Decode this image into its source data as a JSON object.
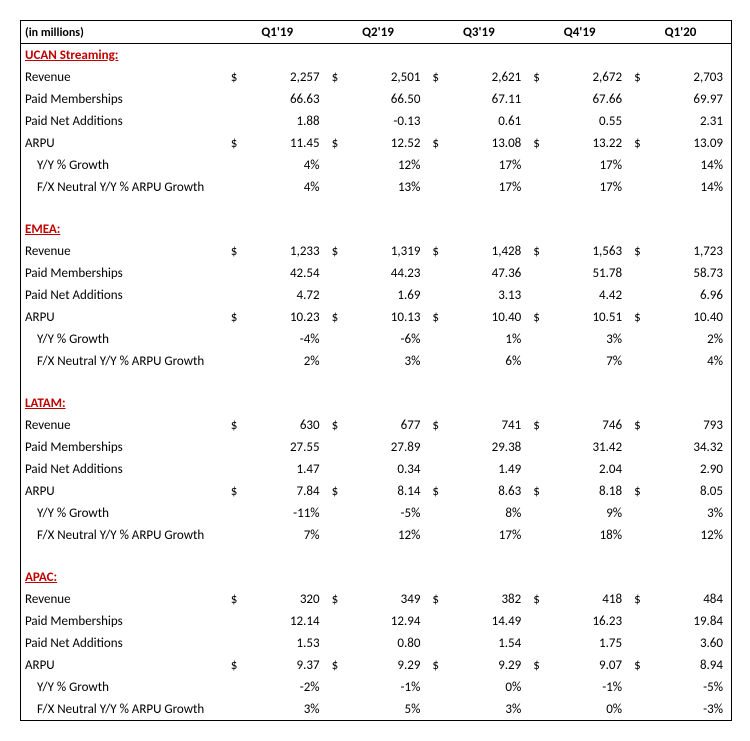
{
  "subtitle": "(in millions)",
  "columns": [
    "Q1'19",
    "Q2'19",
    "Q3'19",
    "Q4'19",
    "Q1'20"
  ],
  "sections": [
    {
      "title": "UCAN Streaming:",
      "rows": [
        {
          "label": "Revenue",
          "indent": 0,
          "dollar": true,
          "values": [
            "2,257",
            "2,501",
            "2,621",
            "2,672",
            "2,703"
          ]
        },
        {
          "label": "Paid Memberships",
          "indent": 0,
          "dollar": false,
          "values": [
            "66.63",
            "66.50",
            "67.11",
            "67.66",
            "69.97"
          ]
        },
        {
          "label": "Paid Net Additions",
          "indent": 0,
          "dollar": false,
          "values": [
            "1.88",
            "-0.13",
            "0.61",
            "0.55",
            "2.31"
          ]
        },
        {
          "label": "ARPU",
          "indent": 0,
          "dollar": true,
          "values": [
            "11.45",
            "12.52",
            "13.08",
            "13.22",
            "13.09"
          ]
        },
        {
          "label": "Y/Y % Growth",
          "indent": 1,
          "dollar": false,
          "values": [
            "4%",
            "12%",
            "17%",
            "17%",
            "14%"
          ]
        },
        {
          "label": "F/X Neutral Y/Y % ARPU Growth",
          "indent": 1,
          "dollar": false,
          "values": [
            "4%",
            "13%",
            "17%",
            "17%",
            "14%"
          ]
        }
      ]
    },
    {
      "title": "EMEA:",
      "rows": [
        {
          "label": "Revenue",
          "indent": 0,
          "dollar": true,
          "values": [
            "1,233",
            "1,319",
            "1,428",
            "1,563",
            "1,723"
          ]
        },
        {
          "label": "Paid Memberships",
          "indent": 0,
          "dollar": false,
          "values": [
            "42.54",
            "44.23",
            "47.36",
            "51.78",
            "58.73"
          ]
        },
        {
          "label": "Paid Net Additions",
          "indent": 0,
          "dollar": false,
          "values": [
            "4.72",
            "1.69",
            "3.13",
            "4.42",
            "6.96"
          ]
        },
        {
          "label": "ARPU",
          "indent": 0,
          "dollar": true,
          "values": [
            "10.23",
            "10.13",
            "10.40",
            "10.51",
            "10.40"
          ]
        },
        {
          "label": "Y/Y % Growth",
          "indent": 1,
          "dollar": false,
          "values": [
            "-4%",
            "-6%",
            "1%",
            "3%",
            "2%"
          ]
        },
        {
          "label": "F/X Neutral Y/Y % ARPU Growth",
          "indent": 1,
          "dollar": false,
          "values": [
            "2%",
            "3%",
            "6%",
            "7%",
            "4%"
          ]
        }
      ]
    },
    {
      "title": "LATAM:",
      "rows": [
        {
          "label": "Revenue",
          "indent": 0,
          "dollar": true,
          "values": [
            "630",
            "677",
            "741",
            "746",
            "793"
          ]
        },
        {
          "label": "Paid Memberships",
          "indent": 0,
          "dollar": false,
          "values": [
            "27.55",
            "27.89",
            "29.38",
            "31.42",
            "34.32"
          ]
        },
        {
          "label": "Paid Net Additions",
          "indent": 0,
          "dollar": false,
          "values": [
            "1.47",
            "0.34",
            "1.49",
            "2.04",
            "2.90"
          ]
        },
        {
          "label": "ARPU",
          "indent": 0,
          "dollar": true,
          "values": [
            "7.84",
            "8.14",
            "8.63",
            "8.18",
            "8.05"
          ]
        },
        {
          "label": "Y/Y % Growth",
          "indent": 1,
          "dollar": false,
          "values": [
            "-11%",
            "-5%",
            "8%",
            "9%",
            "3%"
          ]
        },
        {
          "label": "F/X Neutral Y/Y % ARPU Growth",
          "indent": 1,
          "dollar": false,
          "values": [
            "7%",
            "12%",
            "17%",
            "18%",
            "12%"
          ]
        }
      ]
    },
    {
      "title": "APAC:",
      "rows": [
        {
          "label": "Revenue",
          "indent": 0,
          "dollar": true,
          "values": [
            "320",
            "349",
            "382",
            "418",
            "484"
          ]
        },
        {
          "label": "Paid Memberships",
          "indent": 0,
          "dollar": false,
          "values": [
            "12.14",
            "12.94",
            "14.49",
            "16.23",
            "19.84"
          ]
        },
        {
          "label": "Paid Net Additions",
          "indent": 0,
          "dollar": false,
          "values": [
            "1.53",
            "0.80",
            "1.54",
            "1.75",
            "3.60"
          ]
        },
        {
          "label": "ARPU",
          "indent": 0,
          "dollar": true,
          "values": [
            "9.37",
            "9.29",
            "9.29",
            "9.07",
            "8.94"
          ]
        },
        {
          "label": "Y/Y % Growth",
          "indent": 1,
          "dollar": false,
          "values": [
            "-2%",
            "-1%",
            "0%",
            "-1%",
            "-5%"
          ]
        },
        {
          "label": "F/X Neutral Y/Y % ARPU Growth",
          "indent": 1,
          "dollar": false,
          "values": [
            "3%",
            "5%",
            "3%",
            "0%",
            "-3%"
          ]
        }
      ]
    }
  ]
}
